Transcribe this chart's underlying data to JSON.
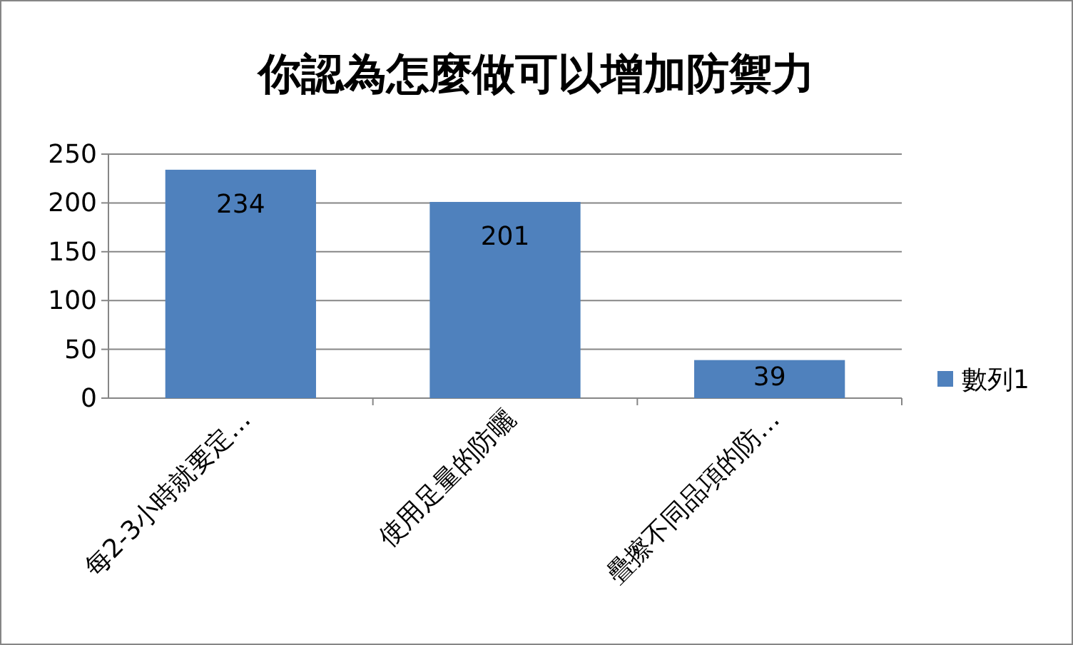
{
  "chart_data": {
    "type": "bar",
    "title": "你認為怎麼做可以增加防禦力",
    "categories": [
      "每2-3小時就要定…",
      "使用足量的防曬",
      "疊擦不同品項的防…"
    ],
    "series": [
      {
        "name": "數列1",
        "color": "#4f81bd",
        "values": [
          234,
          201,
          39
        ]
      }
    ],
    "ylim": [
      0,
      250
    ],
    "yticks": [
      0,
      50,
      100,
      150,
      200,
      250
    ],
    "grid": "y",
    "legend": "right",
    "data_labels": true
  }
}
